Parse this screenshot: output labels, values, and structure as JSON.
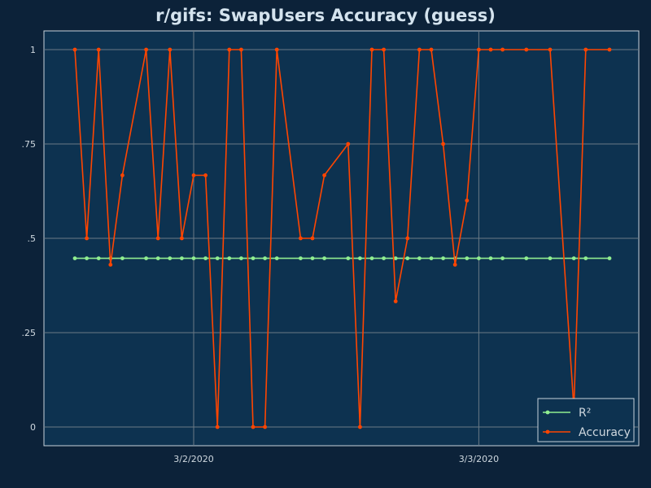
{
  "chart_data": {
    "type": "line",
    "title": "r/gifs: SwapUsers Accuracy (guess)",
    "xlabel": "",
    "ylabel": "",
    "ylim": [
      -0.05,
      1.05
    ],
    "y_ticks": [
      0,
      0.25,
      0.5,
      0.75,
      1
    ],
    "y_tick_labels": [
      "0",
      ".25",
      ".5",
      ".75",
      "1"
    ],
    "x_ticks": [
      {
        "label": "3/2/2020",
        "value": 10.0
      },
      {
        "label": "3/3/2020",
        "value": 34.0
      }
    ],
    "grid": true,
    "legend_position": "bottom-right",
    "series": [
      {
        "name": "R²",
        "color": "#90ee90",
        "x": [
          0,
          1,
          2,
          3,
          4,
          6,
          7,
          8,
          9,
          10,
          11,
          12,
          13,
          14,
          15,
          16,
          17,
          19,
          20,
          21,
          23,
          24,
          25,
          26,
          27,
          28,
          29,
          30,
          31,
          32,
          33,
          34,
          35,
          36,
          38,
          40,
          42,
          43,
          45
        ],
        "y": [
          0.447,
          0.447,
          0.447,
          0.447,
          0.447,
          0.447,
          0.447,
          0.447,
          0.447,
          0.447,
          0.447,
          0.447,
          0.447,
          0.447,
          0.447,
          0.447,
          0.447,
          0.447,
          0.447,
          0.447,
          0.447,
          0.447,
          0.447,
          0.447,
          0.447,
          0.447,
          0.447,
          0.447,
          0.447,
          0.447,
          0.447,
          0.447,
          0.447,
          0.447,
          0.447,
          0.447,
          0.447,
          0.447,
          0.447
        ]
      },
      {
        "name": "Accuracy",
        "color": "#ff4500",
        "x": [
          0,
          1,
          2,
          3,
          4,
          6,
          7,
          8,
          9,
          10,
          11,
          12,
          13,
          14,
          15,
          16,
          17,
          19,
          20,
          21,
          23,
          24,
          25,
          26,
          27,
          28,
          29,
          30,
          31,
          32,
          33,
          34,
          35,
          36,
          38,
          40,
          42,
          43,
          45
        ],
        "y": [
          1,
          0.5,
          1,
          0.43,
          0.667,
          1,
          0.5,
          1,
          0.5,
          0.667,
          0.667,
          0,
          1,
          1,
          0,
          0,
          1,
          0.5,
          0.5,
          0.667,
          0.75,
          0,
          1,
          1,
          0.333,
          0.5,
          1,
          1,
          0.75,
          0.43,
          0.6,
          1,
          1,
          1,
          1,
          1,
          0.05,
          1,
          1
        ]
      }
    ]
  }
}
